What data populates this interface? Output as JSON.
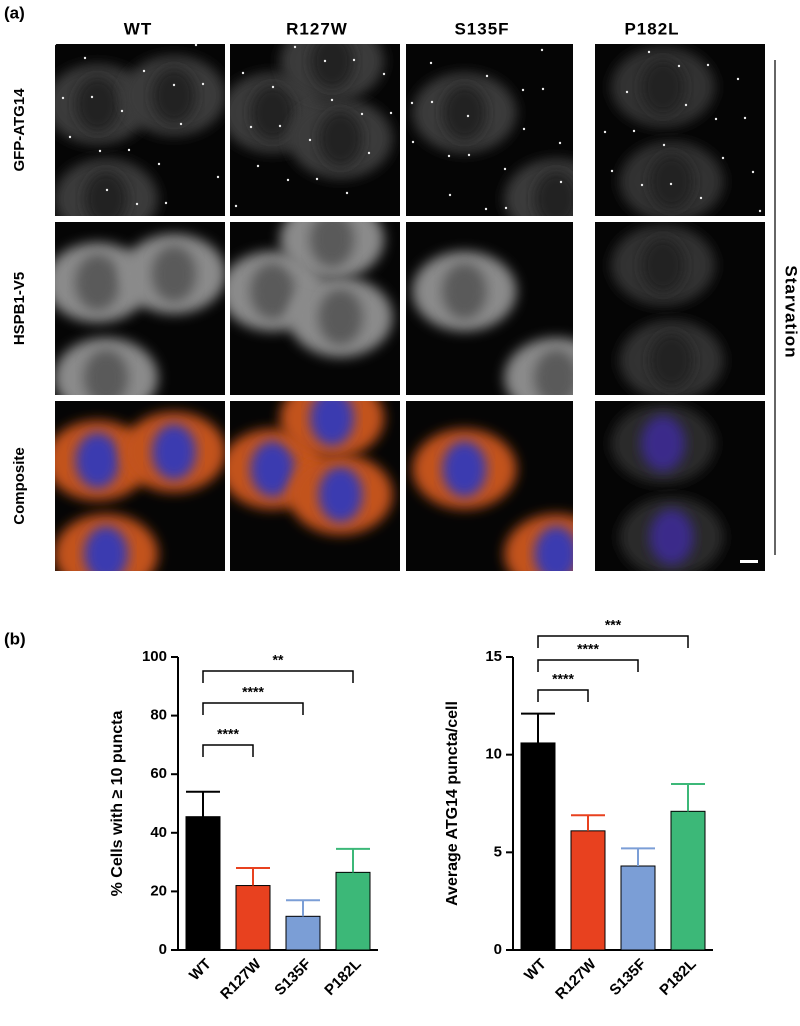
{
  "figure": {
    "panel_a": "(a)",
    "panel_b": "(b)",
    "columns": [
      "WT",
      "R127W",
      "S135F",
      "P182L"
    ],
    "rows": [
      "GFP-ATG14",
      "HSPB1-V5",
      "Composite"
    ],
    "condition": "Starvation"
  },
  "chart_data": [
    {
      "type": "bar",
      "ylabel": "% Cells with ≥ 10 puncta",
      "categories": [
        "WT",
        "R127W",
        "S135F",
        "P182L"
      ],
      "values": [
        45.5,
        22,
        11.5,
        26.5
      ],
      "errors": [
        8.5,
        6,
        5.5,
        8
      ],
      "colors": [
        "#000000",
        "#e8411f",
        "#7b9ed6",
        "#3cb878"
      ],
      "ylim": [
        0,
        100
      ],
      "yticks": [
        0,
        20,
        40,
        60,
        80,
        100
      ],
      "annotations": [
        "****",
        "****",
        "**"
      ]
    },
    {
      "type": "bar",
      "ylabel": "Average ATG14 puncta/cell",
      "categories": [
        "WT",
        "R127W",
        "S135F",
        "P182L"
      ],
      "values": [
        10.6,
        6.1,
        4.3,
        7.1
      ],
      "errors": [
        1.5,
        0.8,
        0.9,
        1.4
      ],
      "colors": [
        "#000000",
        "#e8411f",
        "#7b9ed6",
        "#3cb878"
      ],
      "ylim": [
        0,
        15
      ],
      "yticks": [
        0,
        5,
        10,
        15
      ],
      "annotations": [
        "****",
        "****",
        "***"
      ]
    }
  ]
}
